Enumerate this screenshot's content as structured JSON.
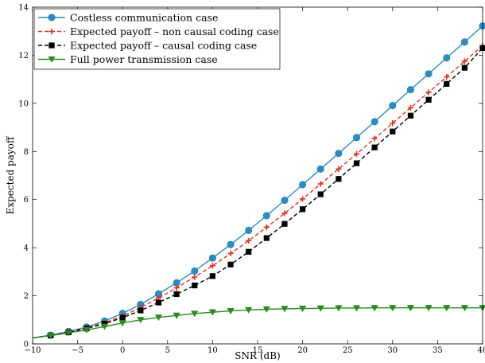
{
  "chart_data": {
    "type": "line",
    "title": "",
    "xlabel": "SNR (dB)",
    "ylabel": "Expected payoff",
    "xlim": [
      -10,
      40
    ],
    "ylim": [
      0,
      14
    ],
    "xticks": [
      -10,
      -5,
      0,
      5,
      10,
      15,
      20,
      25,
      30,
      35,
      40
    ],
    "yticks": [
      0,
      2,
      4,
      6,
      8,
      10,
      12,
      14
    ],
    "grid": false,
    "legend_position": "top-left",
    "x": [
      -10,
      -8,
      -6,
      -4,
      -2,
      0,
      2,
      4,
      6,
      8,
      10,
      12,
      14,
      16,
      18,
      20,
      22,
      24,
      26,
      28,
      30,
      32,
      34,
      36,
      38,
      40
    ],
    "series": [
      {
        "name": "Costless communication case",
        "color": "#2a8ec6",
        "line_style": "solid",
        "marker": "circle",
        "values": [
          0.25,
          0.36,
          0.52,
          0.7,
          0.95,
          1.27,
          1.64,
          2.08,
          2.54,
          3.03,
          3.57,
          4.13,
          4.72,
          5.33,
          5.97,
          6.62,
          7.27,
          7.92,
          8.58,
          9.24,
          9.91,
          10.57,
          11.23,
          11.89,
          12.55,
          13.22
        ]
      },
      {
        "name": "Expected payoff – non causal coding case",
        "color": "#e0321e",
        "line_style": "dashed",
        "marker": "plus",
        "values": [
          0.25,
          0.35,
          0.5,
          0.67,
          0.88,
          1.16,
          1.51,
          1.91,
          2.33,
          2.78,
          3.25,
          3.76,
          4.29,
          4.85,
          5.43,
          6.03,
          6.65,
          7.27,
          7.9,
          8.54,
          9.18,
          9.82,
          10.46,
          11.1,
          11.75,
          12.4
        ]
      },
      {
        "name": "Expected payoff – causal coding case",
        "color": "#000000",
        "line_style": "dashed",
        "marker": "square",
        "values": [
          0.25,
          0.35,
          0.48,
          0.64,
          0.84,
          1.09,
          1.39,
          1.72,
          2.07,
          2.43,
          2.82,
          3.3,
          3.83,
          4.4,
          4.99,
          5.6,
          6.22,
          6.86,
          7.51,
          8.17,
          8.83,
          9.49,
          10.15,
          10.81,
          11.48,
          12.3
        ]
      },
      {
        "name": "Full power transmission case",
        "color": "#2b8a1f",
        "line_style": "solid",
        "marker": "triangle-down",
        "values": [
          0.25,
          0.34,
          0.46,
          0.58,
          0.72,
          0.87,
          1.0,
          1.1,
          1.18,
          1.26,
          1.32,
          1.37,
          1.41,
          1.44,
          1.46,
          1.47,
          1.48,
          1.49,
          1.49,
          1.5,
          1.5,
          1.5,
          1.5,
          1.5,
          1.5,
          1.5
        ]
      }
    ]
  }
}
